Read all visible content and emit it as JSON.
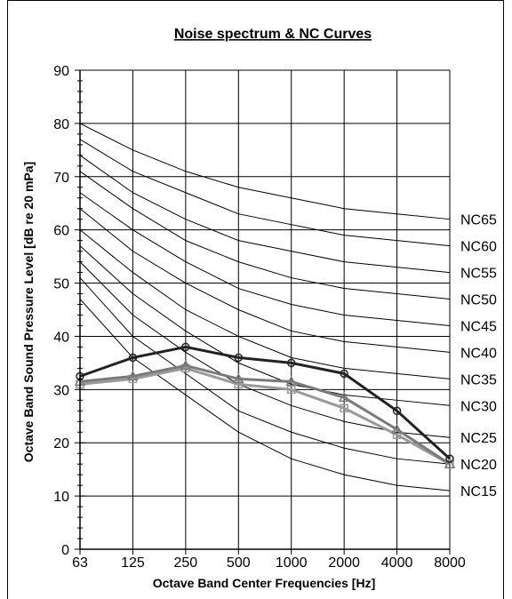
{
  "chart_data": {
    "type": "line",
    "title": "Noise spectrum & NC Curves",
    "xlabel": "Octave Band Center Frequencies [Hz]",
    "ylabel": "Octave Band Sound Pressure Level [dB re 20 mPa]",
    "categories": [
      "63",
      "125",
      "250",
      "500",
      "1000",
      "2000",
      "4000",
      "8000"
    ],
    "ylim": [
      0,
      90
    ],
    "yticks": [
      0,
      10,
      20,
      30,
      40,
      50,
      60,
      70,
      80,
      90
    ],
    "grid": true,
    "legend": "none",
    "nc_curves": [
      {
        "name": "NC15",
        "values": [
          47,
          36,
          29,
          22,
          17,
          14,
          12,
          11
        ]
      },
      {
        "name": "NC20",
        "values": [
          51,
          40,
          33,
          26,
          22,
          19,
          17,
          16
        ]
      },
      {
        "name": "NC25",
        "values": [
          54,
          44,
          37,
          31,
          27,
          24,
          22,
          21
        ]
      },
      {
        "name": "NC30",
        "values": [
          57,
          48,
          41,
          35,
          31,
          29,
          28,
          27
        ]
      },
      {
        "name": "NC35",
        "values": [
          60,
          52,
          45,
          40,
          36,
          34,
          33,
          32
        ]
      },
      {
        "name": "NC40",
        "values": [
          64,
          56,
          50,
          45,
          41,
          39,
          38,
          37
        ]
      },
      {
        "name": "NC45",
        "values": [
          67,
          60,
          54,
          49,
          46,
          44,
          43,
          42
        ]
      },
      {
        "name": "NC50",
        "values": [
          71,
          64,
          58,
          54,
          51,
          49,
          48,
          47
        ]
      },
      {
        "name": "NC55",
        "values": [
          74,
          67,
          62,
          58,
          56,
          54,
          53,
          52
        ]
      },
      {
        "name": "NC60",
        "values": [
          77,
          71,
          67,
          63,
          61,
          59,
          58,
          57
        ]
      },
      {
        "name": "NC65",
        "values": [
          80,
          75,
          71,
          68,
          66,
          64,
          63,
          62
        ]
      }
    ],
    "series": [
      {
        "values": [
          32.5,
          36,
          38,
          36,
          35,
          33,
          26,
          17
        ],
        "marker": "circle",
        "color": "#222222"
      },
      {
        "values": [
          31.5,
          32.5,
          34.5,
          32,
          31.5,
          28.5,
          22.5,
          16
        ],
        "marker": "triangle",
        "color": "#7a7a7a"
      },
      {
        "values": [
          31,
          32,
          34,
          31,
          30,
          26.5,
          21.5,
          16
        ],
        "marker": "square",
        "color": "#9a9a9a"
      }
    ]
  }
}
